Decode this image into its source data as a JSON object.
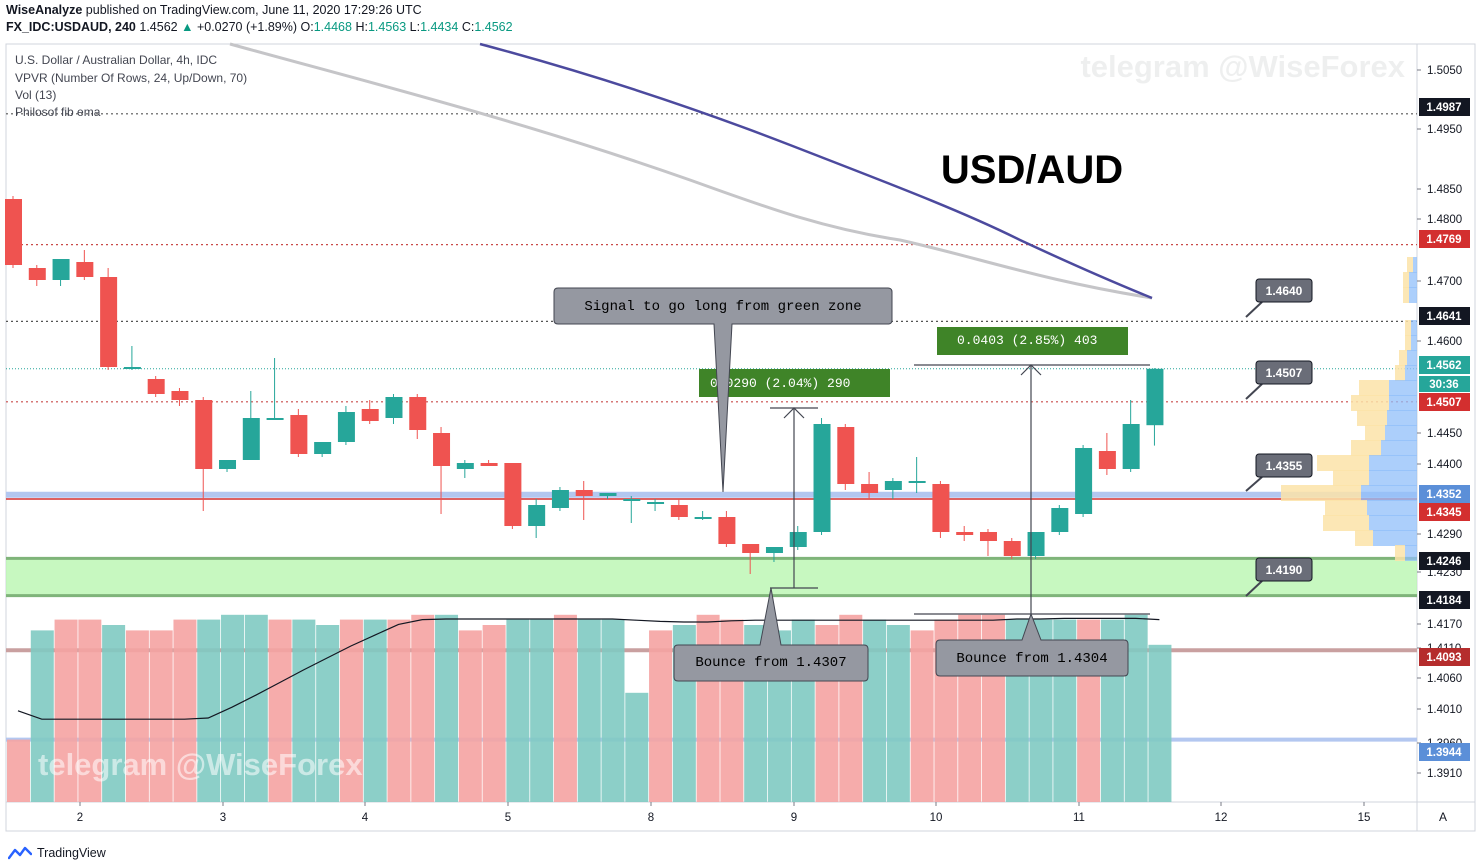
{
  "header": {
    "author": "WiseAnalyze",
    "published": "published on TradingView.com, June 11, 2020 17:29:26 UTC",
    "symbol": "FX_IDC:USDAUD, 240",
    "last": "1.4562",
    "change": "+0.0270 (+1.89%)",
    "o_label": "O:",
    "o_val": "1.4468",
    "h_label": "H:",
    "h_val": "1.4563",
    "l_label": "L:",
    "l_val": "1.4434",
    "c_label": "C:",
    "c_val": "1.4562"
  },
  "legend": [
    "U.S. Dollar / Australian Dollar, 4h, IDC",
    "VPVR (Number Of Rows, 24, Up/Down, 70)",
    "Vol (13)",
    "Philosof fib ema"
  ],
  "watermark": "telegram @WiseForex",
  "big_title": "USD/AUD",
  "footer_brand": "TradingView",
  "corner_label": "A",
  "colors": {
    "up": "#26a69a",
    "down": "#ef5350",
    "ema_blue": "#4c4a9e",
    "ema_grey": "#c5c5c8",
    "zone": "#b9f6b0"
  },
  "chart_data": {
    "type": "candlestick",
    "x_ticks": [
      "2",
      "3",
      "4",
      "5",
      "8",
      "9",
      "10",
      "11",
      "12",
      "15"
    ],
    "y_ticks": [
      "1.5050",
      "1.4950",
      "1.4850",
      "1.4800",
      "1.4700",
      "1.4600",
      "1.4450",
      "1.4400",
      "1.4290",
      "1.4230",
      "1.4170",
      "1.4110",
      "1.4060",
      "1.4010",
      "1.3960",
      "1.3910"
    ],
    "price_labels": [
      "1.4987",
      "1.4769",
      "1.4641",
      "1.4562",
      "1.4507",
      "1.4352",
      "1.4345",
      "1.4246",
      "1.4184",
      "1.4093",
      "1.3944"
    ],
    "countdown": "30:36",
    "levels": [
      "1.4640",
      "1.4507",
      "1.4355",
      "1.4190"
    ],
    "range_labels": [
      "0.0290 (2.04%) 290",
      "0.0403 (2.85%) 403"
    ],
    "callouts": [
      "Signal to go long from green zone",
      "Bounce from 1.4307",
      "Bounce from 1.4304"
    ],
    "candles": [
      {
        "o": 1.4845,
        "h": 1.485,
        "l": 1.473,
        "c": 1.4735
      },
      {
        "o": 1.473,
        "h": 1.4735,
        "l": 1.47,
        "c": 1.471
      },
      {
        "o": 1.471,
        "h": 1.4745,
        "l": 1.47,
        "c": 1.4745
      },
      {
        "o": 1.474,
        "h": 1.476,
        "l": 1.471,
        "c": 1.4715
      },
      {
        "o": 1.4715,
        "h": 1.473,
        "l": 1.456,
        "c": 1.4565
      },
      {
        "o": 1.4565,
        "h": 1.46,
        "l": 1.456,
        "c": 1.4565
      },
      {
        "o": 1.4545,
        "h": 1.455,
        "l": 1.4515,
        "c": 1.452
      },
      {
        "o": 1.4525,
        "h": 1.453,
        "l": 1.45,
        "c": 1.451
      },
      {
        "o": 1.451,
        "h": 1.4515,
        "l": 1.4325,
        "c": 1.4395
      },
      {
        "o": 1.4395,
        "h": 1.441,
        "l": 1.439,
        "c": 1.441
      },
      {
        "o": 1.441,
        "h": 1.4525,
        "l": 1.441,
        "c": 1.448
      },
      {
        "o": 1.448,
        "h": 1.458,
        "l": 1.448,
        "c": 1.448
      },
      {
        "o": 1.4485,
        "h": 1.4495,
        "l": 1.4415,
        "c": 1.442
      },
      {
        "o": 1.442,
        "h": 1.444,
        "l": 1.4415,
        "c": 1.444
      },
      {
        "o": 1.444,
        "h": 1.45,
        "l": 1.4435,
        "c": 1.449
      },
      {
        "o": 1.4495,
        "h": 1.451,
        "l": 1.447,
        "c": 1.4475
      },
      {
        "o": 1.448,
        "h": 1.452,
        "l": 1.447,
        "c": 1.4515
      },
      {
        "o": 1.4515,
        "h": 1.452,
        "l": 1.4445,
        "c": 1.446
      },
      {
        "o": 1.4455,
        "h": 1.4465,
        "l": 1.432,
        "c": 1.44
      },
      {
        "o": 1.4395,
        "h": 1.441,
        "l": 1.438,
        "c": 1.4405
      },
      {
        "o": 1.4405,
        "h": 1.441,
        "l": 1.44,
        "c": 1.44
      },
      {
        "o": 1.4405,
        "h": 1.4405,
        "l": 1.4295,
        "c": 1.43
      },
      {
        "o": 1.43,
        "h": 1.4345,
        "l": 1.428,
        "c": 1.4335
      },
      {
        "o": 1.433,
        "h": 1.4365,
        "l": 1.4325,
        "c": 1.436
      },
      {
        "o": 1.436,
        "h": 1.4375,
        "l": 1.431,
        "c": 1.435
      },
      {
        "o": 1.435,
        "h": 1.4355,
        "l": 1.4345,
        "c": 1.4355
      },
      {
        "o": 1.4345,
        "h": 1.435,
        "l": 1.4305,
        "c": 1.4345
      },
      {
        "o": 1.434,
        "h": 1.4345,
        "l": 1.4325,
        "c": 1.434
      },
      {
        "o": 1.4335,
        "h": 1.4345,
        "l": 1.431,
        "c": 1.4315
      },
      {
        "o": 1.4315,
        "h": 1.4325,
        "l": 1.431,
        "c": 1.4315
      },
      {
        "o": 1.4315,
        "h": 1.4325,
        "l": 1.4265,
        "c": 1.427
      },
      {
        "o": 1.427,
        "h": 1.4265,
        "l": 1.422,
        "c": 1.4255
      },
      {
        "o": 1.4255,
        "h": 1.4265,
        "l": 1.424,
        "c": 1.4265
      },
      {
        "o": 1.4265,
        "h": 1.43,
        "l": 1.426,
        "c": 1.429
      },
      {
        "o": 1.429,
        "h": 1.448,
        "l": 1.4285,
        "c": 1.447
      },
      {
        "o": 1.4465,
        "h": 1.447,
        "l": 1.436,
        "c": 1.437
      },
      {
        "o": 1.437,
        "h": 1.439,
        "l": 1.4345,
        "c": 1.4355
      },
      {
        "o": 1.436,
        "h": 1.438,
        "l": 1.4345,
        "c": 1.4375
      },
      {
        "o": 1.4375,
        "h": 1.4415,
        "l": 1.4355,
        "c": 1.4375
      },
      {
        "o": 1.437,
        "h": 1.4375,
        "l": 1.428,
        "c": 1.429
      },
      {
        "o": 1.429,
        "h": 1.43,
        "l": 1.4275,
        "c": 1.4285
      },
      {
        "o": 1.429,
        "h": 1.4295,
        "l": 1.425,
        "c": 1.4275
      },
      {
        "o": 1.4275,
        "h": 1.428,
        "l": 1.4245,
        "c": 1.425
      },
      {
        "o": 1.425,
        "h": 1.429,
        "l": 1.4245,
        "c": 1.429
      },
      {
        "o": 1.429,
        "h": 1.4335,
        "l": 1.4285,
        "c": 1.433
      },
      {
        "o": 1.432,
        "h": 1.4435,
        "l": 1.4315,
        "c": 1.443
      },
      {
        "o": 1.4425,
        "h": 1.4455,
        "l": 1.4385,
        "c": 1.4395
      },
      {
        "o": 1.4395,
        "h": 1.451,
        "l": 1.439,
        "c": 1.447
      },
      {
        "o": 1.4468,
        "h": 1.4563,
        "l": 1.4434,
        "c": 1.4562
      }
    ],
    "volume": [
      1040,
      2860,
      3040,
      3040,
      2950,
      2860,
      2860,
      3040,
      3040,
      3120,
      3120,
      3040,
      3040,
      2950,
      3040,
      3040,
      3040,
      3120,
      3120,
      2860,
      2950,
      3040,
      3040,
      3120,
      3040,
      3040,
      1820,
      2860,
      2950,
      3120,
      3040,
      2950,
      2860,
      3040,
      2950,
      3120,
      3040,
      2950,
      2860,
      3040,
      3120,
      3120,
      3040,
      3040,
      3040,
      3040,
      3040,
      3120,
      2620
    ],
    "volume_ma": [
      1520,
      1380,
      1380,
      1380,
      1380,
      1380,
      1380,
      1380,
      1400,
      1580,
      1780,
      1990,
      2200,
      2400,
      2600,
      2780,
      2960,
      3040,
      3050,
      3050,
      3050,
      3050,
      3050,
      3050,
      3050,
      3050,
      3030,
      3010,
      3000,
      3000,
      3020,
      3030,
      3030,
      3030,
      3030,
      3030,
      3030,
      3030,
      3030,
      3030,
      3030,
      3030,
      3050,
      3050,
      3060,
      3060,
      3060,
      3060,
      3040
    ]
  }
}
